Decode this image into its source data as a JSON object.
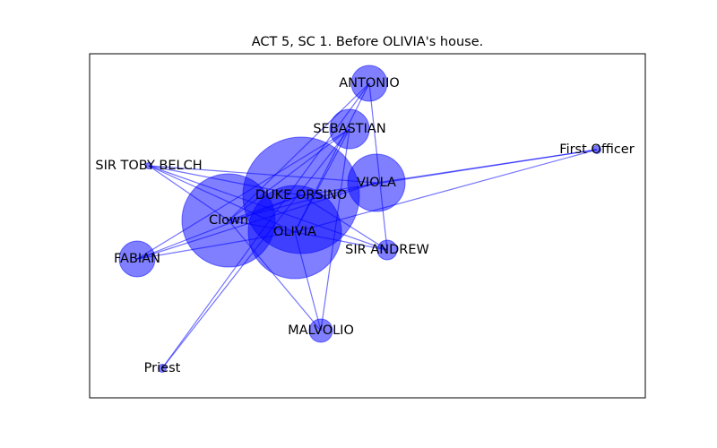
{
  "title": "ACT 5, SC 1. Before OLIVIA's house.",
  "colors": {
    "node": "#0000ff",
    "edge": "#0000ff",
    "frame": "#000000",
    "background": "#ffffff"
  },
  "chart_data": {
    "type": "network",
    "nodes": [
      {
        "id": "ANTONIO",
        "label": "ANTONIO",
        "size": 2
      },
      {
        "id": "SEBASTIAN",
        "label": "SEBASTIAN",
        "size": 2
      },
      {
        "id": "First Officer",
        "label": "First Officer",
        "size": 0.5
      },
      {
        "id": "SIR TOBY BELCH",
        "label": "SIR TOBY BELCH",
        "size": 0.4
      },
      {
        "id": "VIOLA",
        "label": "VIOLA",
        "size": 4
      },
      {
        "id": "DUKE ORSINO",
        "label": "DUKE ORSINO",
        "size": 16
      },
      {
        "id": "Clown",
        "label": "Clown",
        "size": 10
      },
      {
        "id": "OLIVIA",
        "label": "OLIVIA",
        "size": 11
      },
      {
        "id": "FABIAN",
        "label": "FABIAN",
        "size": 1.5
      },
      {
        "id": "SIR ANDREW",
        "label": "SIR ANDREW",
        "size": 0.5
      },
      {
        "id": "MALVOLIO",
        "label": "MALVOLIO",
        "size": 0.7
      },
      {
        "id": "Priest",
        "label": "Priest",
        "size": 0.1
      }
    ],
    "edges": [
      [
        "DUKE ORSINO",
        "First Officer"
      ],
      [
        "VIOLA",
        "First Officer"
      ],
      [
        "OLIVIA",
        "First Officer"
      ],
      [
        "ANTONIO",
        "Clown"
      ],
      [
        "ANTONIO",
        "SIR ANDREW"
      ],
      [
        "ANTONIO",
        "OLIVIA"
      ],
      [
        "ANTONIO",
        "Priest"
      ],
      [
        "SEBASTIAN",
        "Clown"
      ],
      [
        "SEBASTIAN",
        "FABIAN"
      ],
      [
        "SEBASTIAN",
        "OLIVIA"
      ],
      [
        "SEBASTIAN",
        "Priest"
      ],
      [
        "SEBASTIAN",
        "MALVOLIO"
      ],
      [
        "SIR TOBY BELCH",
        "DUKE ORSINO"
      ],
      [
        "SIR TOBY BELCH",
        "Clown"
      ],
      [
        "SIR TOBY BELCH",
        "OLIVIA"
      ],
      [
        "SIR TOBY BELCH",
        "SIR ANDREW"
      ],
      [
        "SIR TOBY BELCH",
        "VIOLA"
      ],
      [
        "VIOLA",
        "Clown"
      ],
      [
        "VIOLA",
        "FABIAN"
      ],
      [
        "DUKE ORSINO",
        "FABIAN"
      ],
      [
        "DUKE ORSINO",
        "SIR ANDREW"
      ],
      [
        "Clown",
        "OLIVIA"
      ],
      [
        "Clown",
        "MALVOLIO"
      ],
      [
        "OLIVIA",
        "MALVOLIO"
      ],
      [
        "OLIVIA",
        "SIR ANDREW"
      ],
      [
        "FABIAN",
        "OLIVIA"
      ],
      [
        "DUKE ORSINO",
        "Clown"
      ]
    ]
  }
}
